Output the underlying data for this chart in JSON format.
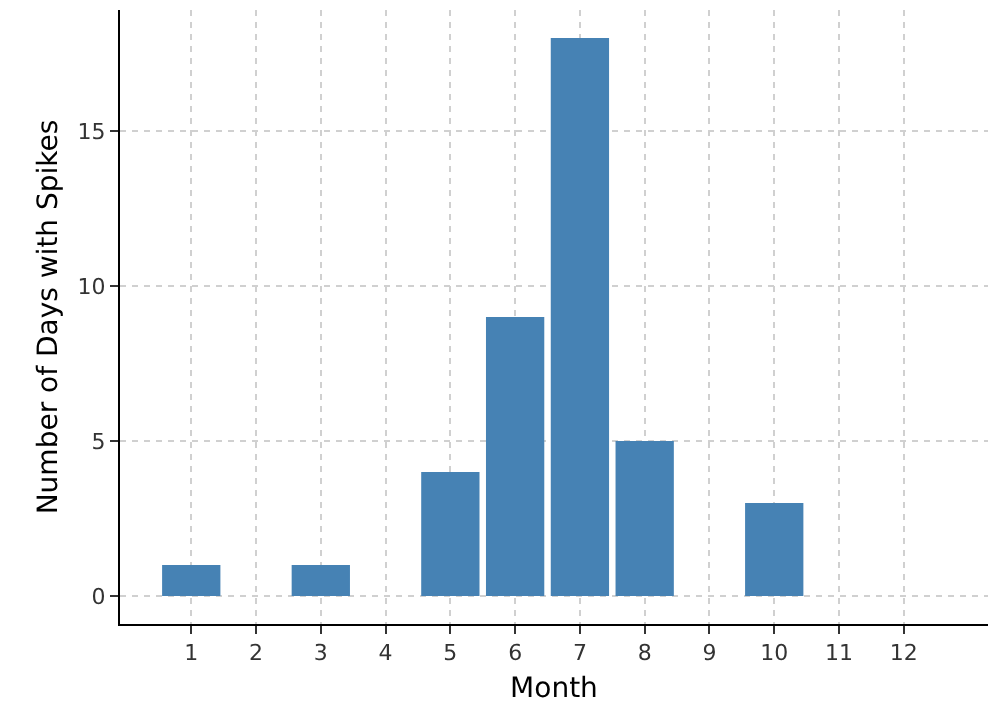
{
  "chart_data": {
    "type": "bar",
    "xlabel": "Month",
    "ylabel": "Number of Days with Spikes",
    "x": [
      1,
      2,
      3,
      4,
      5,
      6,
      7,
      8,
      9,
      10,
      11,
      12
    ],
    "values": [
      1,
      0,
      1,
      0,
      4,
      9,
      18,
      5,
      0,
      3,
      0,
      0
    ],
    "color": "#4682b4",
    "xlim": [
      -0.1,
      13.3
    ],
    "xticks": [
      1,
      2,
      3,
      4,
      5,
      6,
      7,
      8,
      9,
      10,
      11,
      12
    ],
    "ylim": [
      -0.9,
      18.9
    ],
    "yticks": [
      0,
      5,
      10,
      15
    ],
    "grid": true
  }
}
